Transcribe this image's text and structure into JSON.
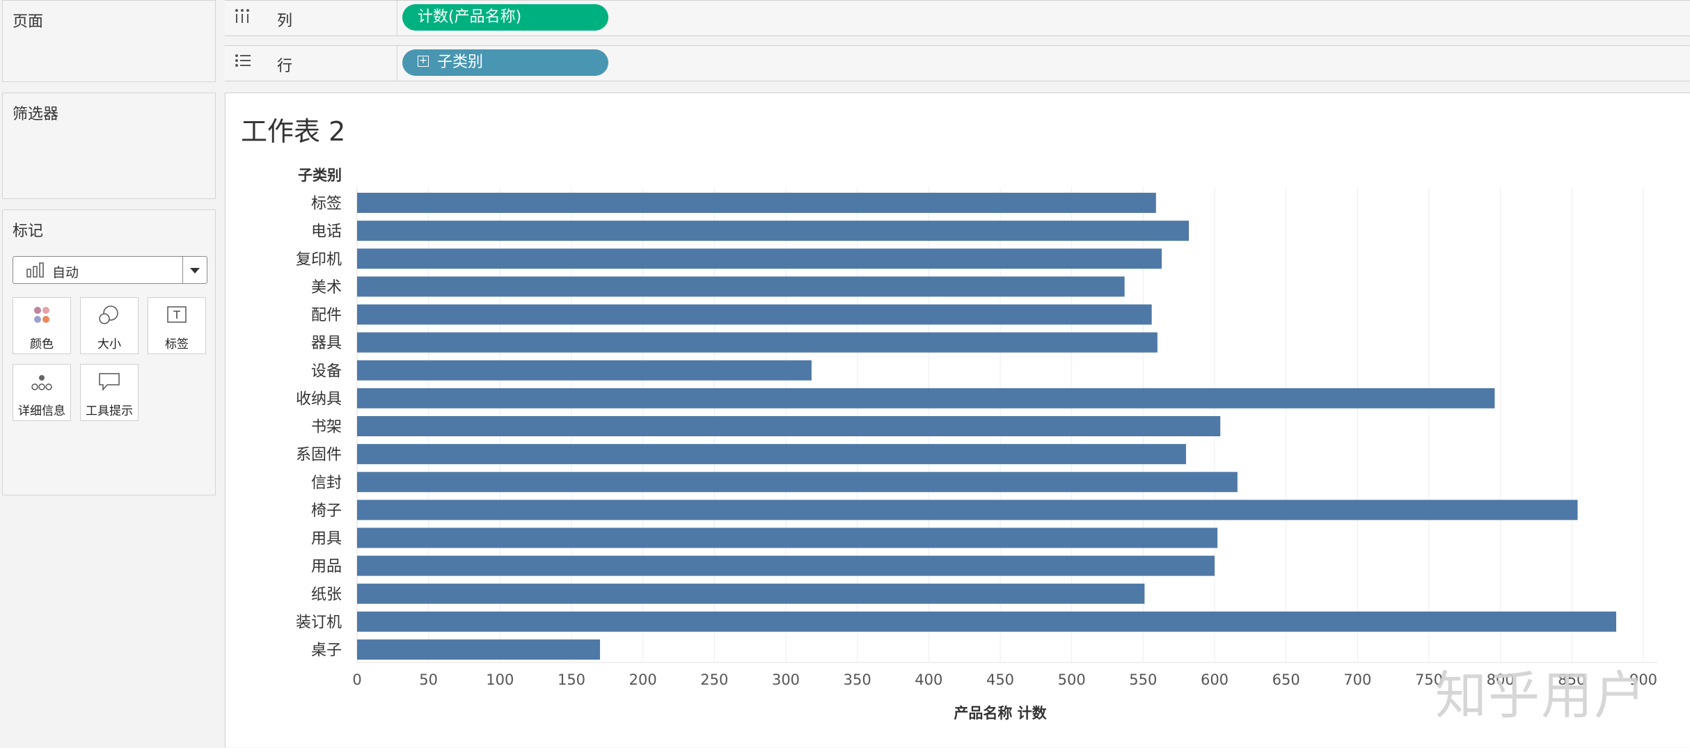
{
  "panels": {
    "pages_title": "页面",
    "filters_title": "筛选器",
    "marks_title": "标记",
    "marks_type": "自动",
    "mark_buttons": {
      "color": "颜色",
      "size": "大小",
      "label": "标签",
      "detail": "详细信息",
      "tooltip": "工具提示"
    }
  },
  "shelves": {
    "columns": {
      "label": "列",
      "pill": "计数(产品名称)",
      "pill_color": "#00b180"
    },
    "rows": {
      "label": "行",
      "pill": "子类别",
      "pill_color": "#4996b2"
    }
  },
  "sheet": {
    "title": "工作表 2"
  },
  "watermark": "知乎用户",
  "chart_data": {
    "type": "bar",
    "orientation": "horizontal",
    "category_header": "子类别",
    "xlabel": "产品名称 计数",
    "bar_color": "#4e79a7",
    "xlim": [
      0,
      900
    ],
    "xticks": [
      0,
      50,
      100,
      150,
      200,
      250,
      300,
      350,
      400,
      450,
      500,
      550,
      600,
      650,
      700,
      750,
      800,
      850,
      900
    ],
    "grid": true,
    "categories": [
      "标签",
      "电话",
      "复印机",
      "美术",
      "配件",
      "器具",
      "设备",
      "收纳具",
      "书架",
      "系固件",
      "信封",
      "椅子",
      "用具",
      "用品",
      "纸张",
      "装订机",
      "桌子"
    ],
    "values": [
      559,
      582,
      563,
      537,
      556,
      560,
      318,
      796,
      604,
      580,
      616,
      854,
      602,
      600,
      551,
      881,
      170
    ]
  }
}
